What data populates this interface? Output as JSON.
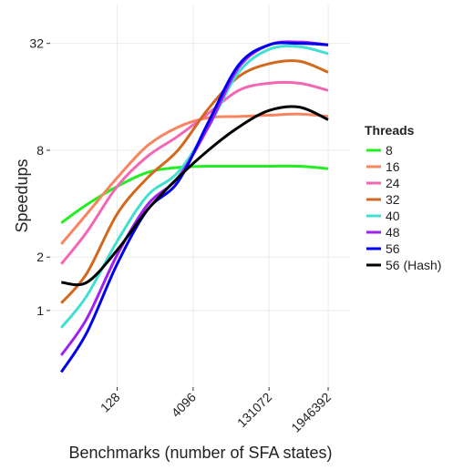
{
  "chart_data": {
    "type": "line",
    "xlabel": "Benchmarks (number of SFA states)",
    "ylabel": "Speedups",
    "xscale": "log",
    "yscale": "log",
    "grid": true,
    "xlim": [
      6,
      5500000
    ],
    "ylim": [
      0.37,
      53
    ],
    "xticks": [
      128,
      4096,
      131072,
      1946392
    ],
    "yticks": [
      1,
      2,
      8,
      32
    ],
    "legend_title": "Threads",
    "legend_position": "right",
    "x": [
      10,
      32,
      128,
      512,
      2048,
      8192,
      32768,
      131072,
      524288,
      1946392
    ],
    "series": [
      {
        "name": "8",
        "color": "#22ee22",
        "values": [
          3.12,
          3.95,
          5.0,
          6.0,
          6.4,
          6.5,
          6.5,
          6.5,
          6.5,
          6.3
        ]
      },
      {
        "name": "16",
        "color": "#f98560",
        "values": [
          2.37,
          3.5,
          5.6,
          8.5,
          10.8,
          12.2,
          12.4,
          12.6,
          12.8,
          12.4
        ]
      },
      {
        "name": "24",
        "color": "#f366b3",
        "values": [
          1.83,
          2.77,
          5.0,
          7.4,
          9.6,
          12.9,
          17.4,
          19.1,
          19.1,
          17.4
        ]
      },
      {
        "name": "32",
        "color": "#d2691e",
        "values": [
          1.1,
          1.62,
          3.5,
          5.6,
          8.0,
          13.7,
          20.8,
          24.6,
          25.4,
          22.0
        ]
      },
      {
        "name": "40",
        "color": "#40e0d0",
        "values": [
          0.8,
          1.21,
          2.46,
          4.45,
          6.0,
          10.8,
          22,
          29.6,
          30.7,
          28
        ]
      },
      {
        "name": "48",
        "color": "#a020f0",
        "values": [
          0.56,
          0.9,
          2.06,
          3.95,
          5.6,
          10.8,
          23.4,
          31.4,
          32.6,
          31.4
        ]
      },
      {
        "name": "56",
        "color": "#0000ee",
        "values": [
          0.45,
          0.75,
          1.83,
          3.7,
          5.3,
          11.5,
          24.2,
          31.4,
          32,
          31.4
        ]
      },
      {
        "name": "56 (Hash)",
        "color": "#000000",
        "values": [
          1.44,
          1.44,
          2.19,
          3.7,
          5.6,
          8.0,
          10.8,
          13.4,
          14,
          11.9
        ]
      }
    ]
  }
}
